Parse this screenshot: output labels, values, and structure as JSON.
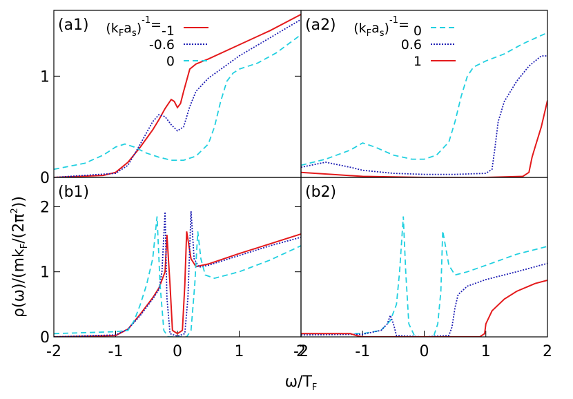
{
  "chart_data": [
    {
      "type": "line",
      "panel": "(a1)",
      "legend_title": [
        "(k",
        "F",
        "a",
        "s",
        ")",
        "-1",
        "="
      ],
      "xlim": [
        -2,
        2
      ],
      "ylim": [
        0,
        1.65
      ],
      "yticks": [
        0,
        1
      ],
      "series": [
        {
          "name": "-1",
          "color": "#e41a1c",
          "style": "solid",
          "x": [
            -2,
            -1.2,
            -1,
            -0.8,
            -0.6,
            -0.4,
            -0.3,
            -0.2,
            -0.1,
            -0.05,
            0,
            0.05,
            0.1,
            0.2,
            0.3,
            0.5,
            1,
            1.5,
            2
          ],
          "values": [
            0,
            0.02,
            0.05,
            0.15,
            0.3,
            0.47,
            0.57,
            0.68,
            0.77,
            0.75,
            0.69,
            0.73,
            0.85,
            1.07,
            1.12,
            1.17,
            1.31,
            1.45,
            1.61
          ]
        },
        {
          "name": "-0.6",
          "color": "#1f1fb4",
          "style": "dotted",
          "x": [
            -2,
            -1,
            -0.8,
            -0.6,
            -0.4,
            -0.3,
            -0.2,
            -0.1,
            0,
            0.1,
            0.2,
            0.3,
            0.5,
            1,
            1.5,
            2
          ],
          "values": [
            0,
            0.04,
            0.12,
            0.33,
            0.55,
            0.62,
            0.6,
            0.52,
            0.46,
            0.5,
            0.7,
            0.85,
            0.98,
            1.2,
            1.38,
            1.56
          ]
        },
        {
          "name": "0",
          "color": "#22d0e0",
          "style": "dashed",
          "x": [
            -2,
            -1.5,
            -1.2,
            -1,
            -0.85,
            -0.7,
            -0.5,
            -0.3,
            -0.1,
            0.1,
            0.3,
            0.5,
            0.6,
            0.7,
            0.8,
            0.9,
            1,
            1.3,
            1.6,
            2
          ],
          "values": [
            0.08,
            0.14,
            0.22,
            0.3,
            0.33,
            0.3,
            0.24,
            0.2,
            0.17,
            0.17,
            0.21,
            0.33,
            0.5,
            0.75,
            0.95,
            1.03,
            1.07,
            1.13,
            1.23,
            1.41
          ]
        }
      ]
    },
    {
      "type": "line",
      "panel": "(a2)",
      "legend_title": [
        "(k",
        "F",
        "a",
        "s",
        ")",
        "-1",
        "= "
      ],
      "xlim": [
        -2,
        2
      ],
      "ylim": [
        0,
        1.65
      ],
      "series": [
        {
          "name": "0",
          "color": "#22d0e0",
          "style": "dashed",
          "x": [
            -2,
            -1.6,
            -1.2,
            -1,
            -0.8,
            -0.5,
            -0.2,
            0,
            0.2,
            0.4,
            0.5,
            0.6,
            0.7,
            0.8,
            1,
            1.3,
            1.6,
            2
          ],
          "values": [
            0.12,
            0.18,
            0.27,
            0.34,
            0.3,
            0.22,
            0.18,
            0.18,
            0.22,
            0.35,
            0.55,
            0.8,
            1.0,
            1.09,
            1.15,
            1.22,
            1.32,
            1.43
          ]
        },
        {
          "name": "0.6",
          "color": "#1f1fb4",
          "style": "dotted",
          "x": [
            -2,
            -1.6,
            -1.2,
            -1,
            -0.5,
            0,
            0.5,
            1,
            1.1,
            1.15,
            1.2,
            1.3,
            1.5,
            1.7,
            1.9,
            2
          ],
          "values": [
            0.1,
            0.15,
            0.1,
            0.07,
            0.04,
            0.03,
            0.03,
            0.04,
            0.08,
            0.3,
            0.55,
            0.75,
            0.95,
            1.1,
            1.2,
            1.2
          ]
        },
        {
          "name": "1",
          "color": "#e41a1c",
          "style": "solid",
          "x": [
            -2,
            -1.5,
            -1,
            0,
            1,
            1.6,
            1.7,
            1.75,
            1.8,
            1.9,
            2
          ],
          "values": [
            0.05,
            0.03,
            0.01,
            0,
            0,
            0.01,
            0.05,
            0.2,
            0.3,
            0.5,
            0.76
          ]
        }
      ]
    },
    {
      "type": "line",
      "panel": "(b1)",
      "xlim": [
        -2,
        2
      ],
      "ylim": [
        0,
        2.45
      ],
      "xticks": [
        -2,
        -1,
        0,
        1,
        2
      ],
      "yticks": [
        0,
        1,
        2
      ],
      "series": [
        {
          "name": "-1",
          "color": "#e41a1c",
          "style": "solid",
          "x": [
            -2,
            -1,
            -0.8,
            -0.6,
            -0.4,
            -0.3,
            -0.2,
            -0.17,
            -0.12,
            -0.08,
            0,
            0.08,
            0.12,
            0.15,
            0.22,
            0.3,
            0.5,
            1,
            1.5,
            2
          ],
          "values": [
            0,
            0.02,
            0.12,
            0.35,
            0.6,
            0.75,
            1.0,
            1.57,
            0.8,
            0.1,
            0.05,
            0.1,
            0.8,
            1.62,
            1.2,
            1.08,
            1.12,
            1.28,
            1.43,
            1.58
          ]
        },
        {
          "name": "-0.6",
          "color": "#1f1fb4",
          "style": "dotted",
          "x": [
            -2,
            -1,
            -0.8,
            -0.6,
            -0.4,
            -0.3,
            -0.25,
            -0.2,
            -0.17,
            -0.12,
            0,
            0.12,
            0.17,
            0.22,
            0.27,
            0.35,
            0.5,
            1,
            1.5,
            2
          ],
          "values": [
            0,
            0.03,
            0.12,
            0.33,
            0.58,
            0.73,
            1.0,
            1.92,
            0.6,
            0.05,
            0.01,
            0.05,
            0.6,
            1.93,
            1.2,
            1.07,
            1.1,
            1.25,
            1.4,
            1.53
          ]
        },
        {
          "name": "0",
          "color": "#22d0e0",
          "style": "dashed",
          "x": [
            -2,
            -1,
            -0.8,
            -0.7,
            -0.6,
            -0.5,
            -0.4,
            -0.33,
            -0.28,
            -0.22,
            -0.15,
            0.15,
            0.22,
            0.28,
            0.33,
            0.38,
            0.45,
            0.6,
            1,
            1.5,
            2
          ],
          "values": [
            0.05,
            0.08,
            0.1,
            0.25,
            0.5,
            0.8,
            1.2,
            1.85,
            0.8,
            0.1,
            0,
            0,
            0.1,
            0.8,
            1.62,
            1.2,
            0.95,
            0.9,
            1.0,
            1.18,
            1.4
          ]
        }
      ]
    },
    {
      "type": "line",
      "panel": "(b2)",
      "xlim": [
        -2,
        2
      ],
      "ylim": [
        0,
        2.45
      ],
      "xticks": [
        -2,
        -1,
        0,
        1,
        2
      ],
      "series": [
        {
          "name": "0",
          "color": "#22d0e0",
          "style": "dashed",
          "x": [
            -2,
            -1,
            -0.7,
            -0.55,
            -0.45,
            -0.4,
            -0.34,
            -0.3,
            -0.25,
            -0.15,
            0.15,
            0.22,
            0.27,
            0.3,
            0.4,
            0.5,
            0.7,
            1,
            1.5,
            2
          ],
          "values": [
            0.05,
            0.05,
            0.1,
            0.25,
            0.5,
            1.0,
            1.85,
            1.0,
            0.2,
            0,
            0,
            0.2,
            0.7,
            1.63,
            1.1,
            0.95,
            1.0,
            1.1,
            1.27,
            1.39
          ]
        },
        {
          "name": "0.6",
          "color": "#1f1fb4",
          "style": "dotted",
          "x": [
            -2,
            -1,
            -0.7,
            -0.6,
            -0.55,
            -0.5,
            -0.45,
            0,
            0.4,
            0.45,
            0.5,
            0.55,
            0.7,
            1,
            1.5,
            2
          ],
          "values": [
            0.03,
            0.04,
            0.1,
            0.2,
            0.33,
            0.2,
            0.02,
            0,
            0.02,
            0.15,
            0.45,
            0.65,
            0.78,
            0.88,
            1.0,
            1.13
          ]
        },
        {
          "name": "1",
          "color": "#e41a1c",
          "style": "solid",
          "x": [
            -2,
            -1.2,
            -1.1,
            -1,
            0.9,
            0.98,
            1.0,
            1.1,
            1.3,
            1.5,
            1.8,
            2
          ],
          "values": [
            0.05,
            0.05,
            0.02,
            0,
            0,
            0.05,
            0.2,
            0.4,
            0.58,
            0.7,
            0.82,
            0.87
          ]
        }
      ]
    }
  ],
  "ylabel": [
    "ρ(ω)/(mk",
    "F",
    "/(2π",
    "2",
    "))"
  ],
  "xlabel": [
    "ω/T",
    "F"
  ]
}
